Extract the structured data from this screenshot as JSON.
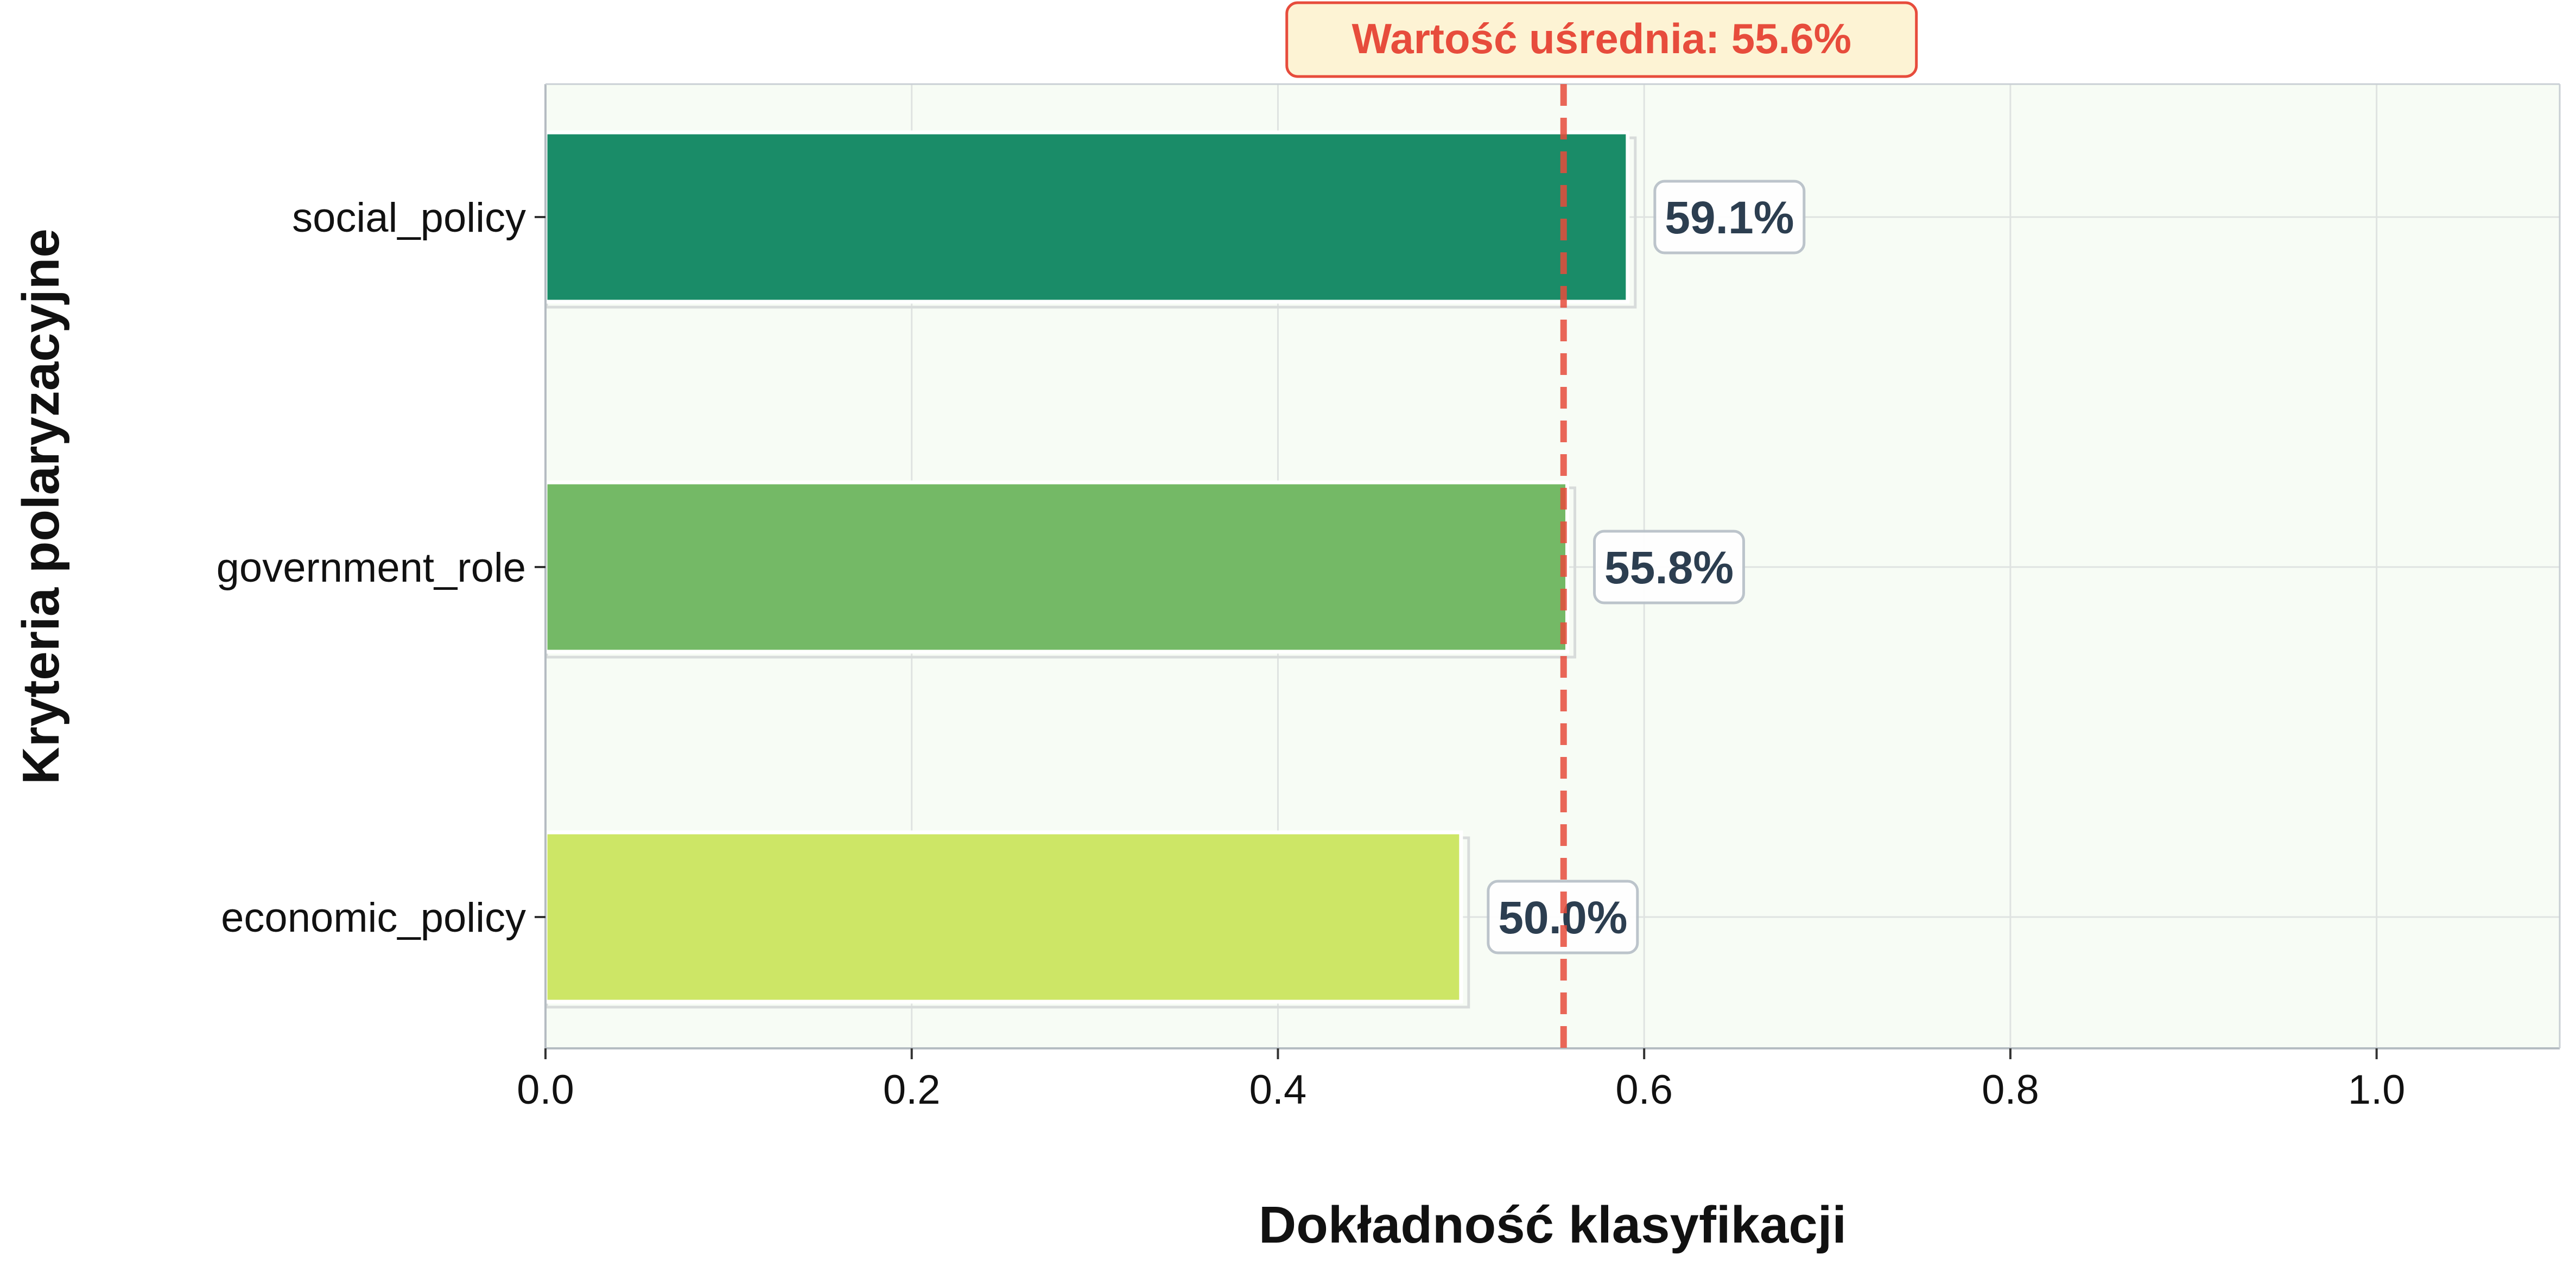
{
  "chart_data": {
    "type": "bar",
    "orientation": "horizontal",
    "categories": [
      "social_policy",
      "government_role",
      "economic_policy"
    ],
    "values": [
      0.591,
      0.558,
      0.5
    ],
    "value_labels": [
      "59.1%",
      "55.8%",
      "50.0%"
    ],
    "bar_colors": [
      "#1a8c68",
      "#74b966",
      "#cde666"
    ],
    "title": "",
    "xlabel": "Dokładność klasyfikacji",
    "ylabel": "Kryteria polaryzacyjne",
    "xlim": [
      0.0,
      1.1
    ],
    "xticks": [
      0.0,
      0.2,
      0.4,
      0.6,
      0.8,
      1.0
    ],
    "xtick_labels": [
      "0.0",
      "0.2",
      "0.4",
      "0.6",
      "0.8",
      "1.0"
    ],
    "mean_line": {
      "value": 0.556,
      "label": "Wartość uśrednia: 55.6%",
      "color": "#e74c3c"
    },
    "grid": true,
    "legend": "none",
    "plot_background": "#f7fcf5"
  }
}
